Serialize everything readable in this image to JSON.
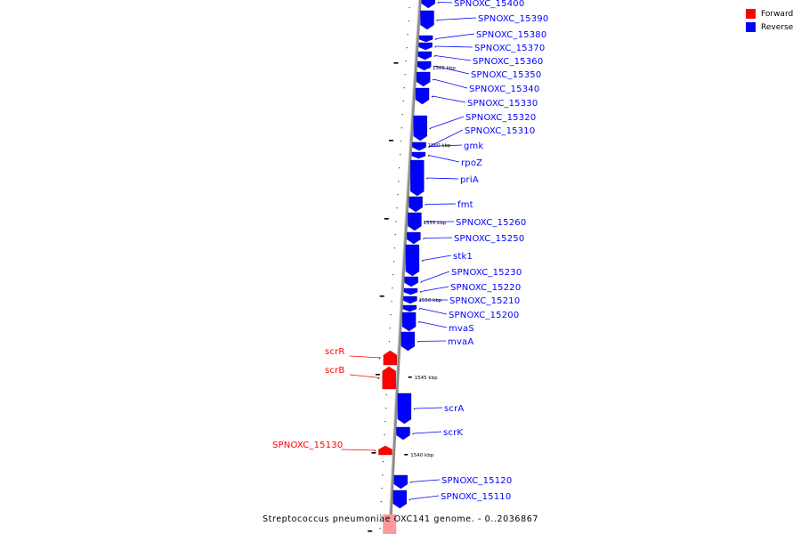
{
  "title": "Streptococcus pneumoniae OXC141 genome. - 0..2036867",
  "legend": [
    {
      "label": "Forward",
      "color": "#ff0000"
    },
    {
      "label": "Reverse",
      "color": "#0000ff"
    }
  ],
  "colors": {
    "forward": "#ff0000",
    "reverse": "#0000ff",
    "backbone": "#8c8c8c"
  },
  "ticks": [
    "1565 kbp",
    "1560 kbp",
    "1555 kbp",
    "1550 kbp",
    "1545 kbp",
    "1540 kbp"
  ],
  "genes": [
    {
      "name": "SPNOXC_15400",
      "strand": "reverse"
    },
    {
      "name": "SPNOXC_15390",
      "strand": "reverse"
    },
    {
      "name": "SPNOXC_15380",
      "strand": "reverse"
    },
    {
      "name": "SPNOXC_15370",
      "strand": "reverse"
    },
    {
      "name": "SPNOXC_15360",
      "strand": "reverse"
    },
    {
      "name": "SPNOXC_15350",
      "strand": "reverse"
    },
    {
      "name": "SPNOXC_15340",
      "strand": "reverse"
    },
    {
      "name": "SPNOXC_15330",
      "strand": "reverse"
    },
    {
      "name": "SPNOXC_15320",
      "strand": "reverse"
    },
    {
      "name": "SPNOXC_15310",
      "strand": "reverse"
    },
    {
      "name": "gmk",
      "strand": "reverse"
    },
    {
      "name": "rpoZ",
      "strand": "reverse"
    },
    {
      "name": "priA",
      "strand": "reverse"
    },
    {
      "name": "fmt",
      "strand": "reverse"
    },
    {
      "name": "SPNOXC_15260",
      "strand": "reverse"
    },
    {
      "name": "SPNOXC_15250",
      "strand": "reverse"
    },
    {
      "name": "stk1",
      "strand": "reverse"
    },
    {
      "name": "SPNOXC_15230",
      "strand": "reverse"
    },
    {
      "name": "SPNOXC_15220",
      "strand": "reverse"
    },
    {
      "name": "SPNOXC_15210",
      "strand": "reverse"
    },
    {
      "name": "SPNOXC_15200",
      "strand": "reverse"
    },
    {
      "name": "mvaS",
      "strand": "reverse"
    },
    {
      "name": "mvaA",
      "strand": "reverse"
    },
    {
      "name": "scrR",
      "strand": "forward"
    },
    {
      "name": "scrB",
      "strand": "forward"
    },
    {
      "name": "scrA",
      "strand": "reverse"
    },
    {
      "name": "scrK",
      "strand": "reverse"
    },
    {
      "name": "SPNOXC_15130",
      "strand": "forward"
    },
    {
      "name": "SPNOXC_15120",
      "strand": "reverse"
    },
    {
      "name": "SPNOXC_15110",
      "strand": "reverse"
    }
  ]
}
